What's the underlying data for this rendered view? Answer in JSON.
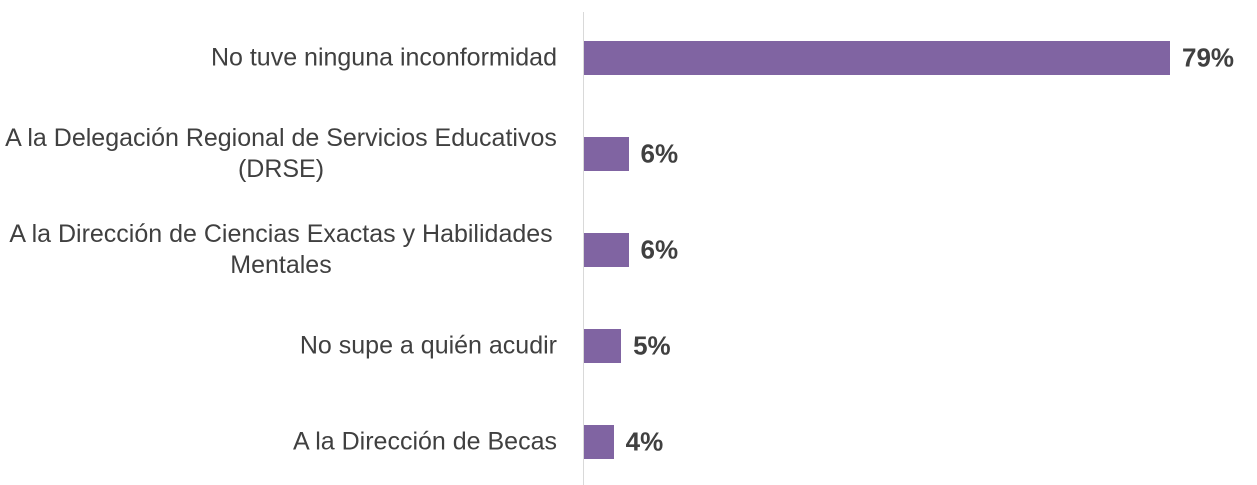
{
  "chart_data": {
    "type": "bar",
    "orientation": "horizontal",
    "categories": [
      "No tuve ninguna inconformidad",
      "A la Delegación Regional de Servicios Educativos (DRSE)",
      "A la Dirección de Ciencias Exactas y Habilidades Mentales",
      "No supe a quién acudir",
      "A la Dirección de Becas"
    ],
    "values": [
      79,
      6,
      6,
      5,
      4
    ],
    "value_labels": [
      "79%",
      "6%",
      "6%",
      "5%",
      "4%"
    ],
    "color": "#8064a2"
  }
}
